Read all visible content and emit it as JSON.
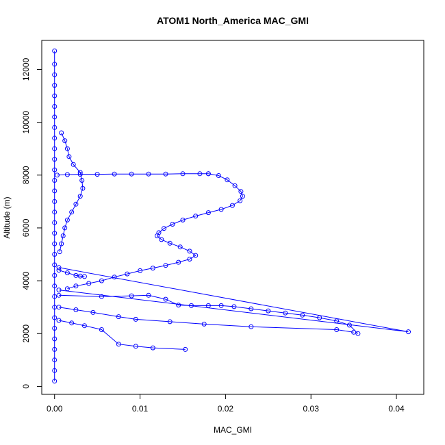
{
  "chart_data": {
    "type": "scatter",
    "title": "ATOM1 North_America MAC_GMI",
    "xlabel": "MAC_GMI",
    "ylabel": "Altitude (m)",
    "xlim": [
      -0.0015,
      0.0432
    ],
    "ylim": [
      -300,
      13100
    ],
    "xticks": [
      0,
      0.01,
      0.02,
      0.03,
      0.04
    ],
    "xtick_labels": [
      "0.00",
      "0.01",
      "0.02",
      "0.03",
      "0.04"
    ],
    "yticks": [
      0,
      2000,
      4000,
      6000,
      8000,
      10000,
      12000
    ],
    "ytick_labels": [
      "0",
      "2000",
      "4000",
      "6000",
      "8000",
      "10000",
      "12000"
    ],
    "grid": false,
    "legend": "none",
    "series_color": "#0000ff",
    "series": [
      {
        "points": [
          [
            0.0,
            200
          ],
          [
            0.0,
            600
          ],
          [
            0.0,
            1000
          ],
          [
            0.0,
            1400
          ],
          [
            0.0,
            1800
          ],
          [
            0.0,
            2200
          ],
          [
            0.0,
            2600
          ],
          [
            0.0,
            3000
          ],
          [
            0.0,
            3400
          ],
          [
            0.0,
            3800
          ],
          [
            0.0,
            4200
          ],
          [
            0.0,
            4600
          ],
          [
            0.0,
            5000
          ],
          [
            0.0,
            5400
          ],
          [
            0.0,
            5800
          ],
          [
            0.0,
            6200
          ],
          [
            0.0,
            6600
          ],
          [
            0.0,
            7000
          ],
          [
            0.0,
            7400
          ],
          [
            0.0,
            7800
          ],
          [
            0.0,
            8200
          ],
          [
            0.0,
            8600
          ],
          [
            0.0,
            9000
          ],
          [
            0.0,
            9400
          ],
          [
            0.0,
            9800
          ],
          [
            0.0,
            10200
          ],
          [
            0.0,
            10600
          ],
          [
            0.0,
            11000
          ],
          [
            0.0,
            11400
          ],
          [
            0.0,
            11800
          ],
          [
            0.0,
            12200
          ],
          [
            0.0,
            12700
          ]
        ]
      },
      {
        "points": [
          [
            0.0003,
            8000
          ],
          [
            0.0015,
            8020
          ],
          [
            0.003,
            8030
          ],
          [
            0.005,
            8030
          ],
          [
            0.007,
            8040
          ],
          [
            0.009,
            8040
          ],
          [
            0.011,
            8040
          ],
          [
            0.013,
            8040
          ],
          [
            0.015,
            8050
          ],
          [
            0.017,
            8050
          ],
          [
            0.018,
            8050
          ]
        ]
      },
      {
        "points": [
          [
            0.018,
            8050
          ],
          [
            0.0192,
            7980
          ],
          [
            0.0202,
            7820
          ],
          [
            0.0211,
            7600
          ],
          [
            0.0218,
            7380
          ],
          [
            0.022,
            7200
          ],
          [
            0.0217,
            7030
          ],
          [
            0.0208,
            6850
          ],
          [
            0.0195,
            6700
          ],
          [
            0.018,
            6580
          ],
          [
            0.0165,
            6450
          ],
          [
            0.015,
            6300
          ],
          [
            0.0138,
            6140
          ],
          [
            0.0128,
            5980
          ],
          [
            0.0122,
            5820
          ],
          [
            0.012,
            5700
          ],
          [
            0.0125,
            5560
          ],
          [
            0.0135,
            5420
          ],
          [
            0.0147,
            5280
          ],
          [
            0.0158,
            5120
          ],
          [
            0.0165,
            4960
          ],
          [
            0.0158,
            4820
          ],
          [
            0.0145,
            4700
          ],
          [
            0.013,
            4580
          ],
          [
            0.0115,
            4480
          ],
          [
            0.01,
            4380
          ],
          [
            0.0085,
            4260
          ],
          [
            0.007,
            4140
          ],
          [
            0.0055,
            4000
          ],
          [
            0.004,
            3900
          ],
          [
            0.0025,
            3800
          ],
          [
            0.0015,
            3700
          ]
        ]
      },
      {
        "points": [
          [
            0.0005,
            4500
          ],
          [
            0.0414,
            2070
          ],
          [
            0.0005,
            3650
          ]
        ]
      },
      {
        "points": [
          [
            0.0005,
            3450
          ],
          [
            0.0055,
            3400
          ],
          [
            0.009,
            3430
          ],
          [
            0.011,
            3450
          ],
          [
            0.013,
            3300
          ],
          [
            0.0145,
            3080
          ],
          [
            0.016,
            3060
          ],
          [
            0.018,
            3060
          ],
          [
            0.0195,
            3060
          ],
          [
            0.021,
            3020
          ],
          [
            0.023,
            2940
          ],
          [
            0.025,
            2860
          ],
          [
            0.027,
            2780
          ],
          [
            0.029,
            2700
          ],
          [
            0.031,
            2600
          ],
          [
            0.033,
            2480
          ],
          [
            0.0345,
            2320
          ],
          [
            0.0355,
            2000
          ]
        ]
      },
      {
        "points": [
          [
            0.0005,
            3000
          ],
          [
            0.0025,
            2900
          ],
          [
            0.0045,
            2800
          ],
          [
            0.0075,
            2640
          ],
          [
            0.0095,
            2540
          ],
          [
            0.0135,
            2450
          ],
          [
            0.0175,
            2360
          ],
          [
            0.023,
            2260
          ],
          [
            0.033,
            2150
          ],
          [
            0.035,
            2050
          ]
        ]
      },
      {
        "points": [
          [
            0.0005,
            2500
          ],
          [
            0.002,
            2400
          ],
          [
            0.0035,
            2300
          ],
          [
            0.0055,
            2150
          ],
          [
            0.0075,
            1600
          ],
          [
            0.0095,
            1520
          ],
          [
            0.0115,
            1460
          ],
          [
            0.0153,
            1400
          ]
        ]
      },
      {
        "points": [
          [
            0.0008,
            9600
          ],
          [
            0.0012,
            9300
          ],
          [
            0.0015,
            9000
          ],
          [
            0.0017,
            8700
          ],
          [
            0.0022,
            8400
          ],
          [
            0.003,
            8100
          ],
          [
            0.0032,
            7800
          ],
          [
            0.0033,
            7500
          ],
          [
            0.003,
            7200
          ],
          [
            0.0025,
            6900
          ],
          [
            0.002,
            6600
          ],
          [
            0.0015,
            6300
          ],
          [
            0.0012,
            6000
          ],
          [
            0.001,
            5700
          ],
          [
            0.0008,
            5400
          ],
          [
            0.0006,
            5100
          ]
        ]
      },
      {
        "points": [
          [
            0.0005,
            4400
          ],
          [
            0.0015,
            4300
          ],
          [
            0.0025,
            4200
          ],
          [
            0.003,
            4180
          ],
          [
            0.0035,
            4160
          ]
        ]
      }
    ]
  }
}
